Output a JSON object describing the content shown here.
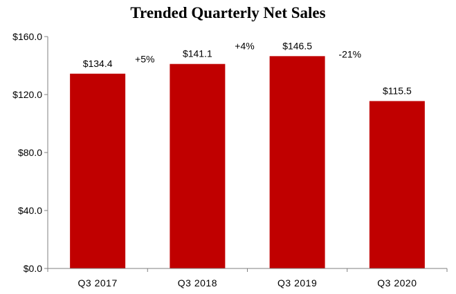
{
  "chart_data": {
    "type": "bar",
    "title": "Trended Quarterly Net Sales",
    "categories": [
      "Q3 2017",
      "Q3 2018",
      "Q3 2019",
      "Q3 2020"
    ],
    "values": [
      134.4,
      141.1,
      146.5,
      115.5
    ],
    "value_labels": [
      "$134.4",
      "$141.1",
      "$146.5",
      "$115.5"
    ],
    "growth_labels": [
      "+5%",
      "+4%",
      "-21%"
    ],
    "y_ticks": [
      0,
      40,
      80,
      120,
      160
    ],
    "y_tick_labels": [
      "$0.0",
      "$40.0",
      "$80.0",
      "$120.0",
      "$160.0"
    ],
    "ylim": [
      0,
      160
    ],
    "xlabel": "",
    "ylabel": "",
    "grid": false,
    "bar_color": "#C00000"
  }
}
